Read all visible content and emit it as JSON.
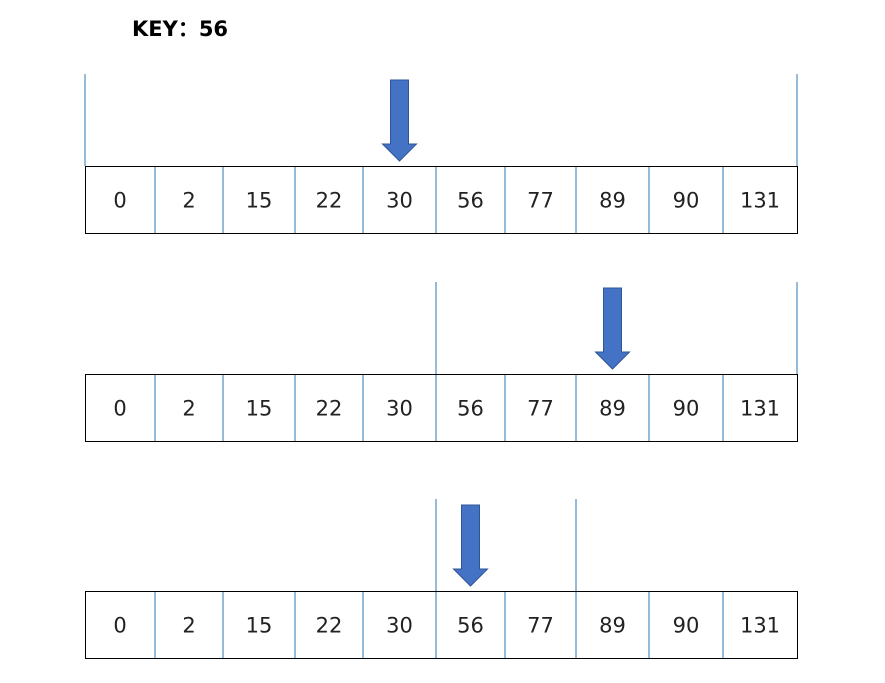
{
  "key": {
    "label": "KEY：56"
  },
  "array": [
    "0",
    "2",
    "15",
    "22",
    "30",
    "56",
    "77",
    "89",
    "90",
    "131"
  ],
  "steps": [
    {
      "low": 0,
      "high": 9,
      "mid": 4
    },
    {
      "low": 5,
      "high": 9,
      "mid": 7
    },
    {
      "low": 5,
      "high": 6,
      "mid": 5
    }
  ],
  "colors": {
    "arrow": "#4472c4",
    "arrow_border": "#2f5597",
    "divider": "#2e75b6",
    "box_border": "#000000",
    "text": "#222222"
  }
}
